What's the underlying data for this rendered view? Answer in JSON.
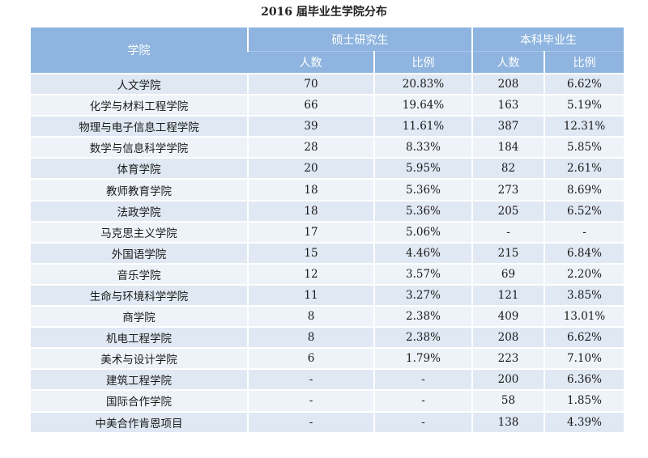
{
  "title": "2016 届毕业生学院分布",
  "table": {
    "header": {
      "college": "学院",
      "master_group": "硕士研究生",
      "bachelor_group": "本科毕业生",
      "count": "人数",
      "ratio": "比例"
    },
    "rows": [
      {
        "name": "人文学院",
        "m_count": "70",
        "m_ratio": "20.83%",
        "b_count": "208",
        "b_ratio": "6.62%"
      },
      {
        "name": "化学与材料工程学院",
        "m_count": "66",
        "m_ratio": "19.64%",
        "b_count": "163",
        "b_ratio": "5.19%"
      },
      {
        "name": "物理与电子信息工程学院",
        "m_count": "39",
        "m_ratio": "11.61%",
        "b_count": "387",
        "b_ratio": "12.31%"
      },
      {
        "name": "数学与信息科学学院",
        "m_count": "28",
        "m_ratio": "8.33%",
        "b_count": "184",
        "b_ratio": "5.85%"
      },
      {
        "name": "体育学院",
        "m_count": "20",
        "m_ratio": "5.95%",
        "b_count": "82",
        "b_ratio": "2.61%"
      },
      {
        "name": "教师教育学院",
        "m_count": "18",
        "m_ratio": "5.36%",
        "b_count": "273",
        "b_ratio": "8.69%"
      },
      {
        "name": "法政学院",
        "m_count": "18",
        "m_ratio": "5.36%",
        "b_count": "205",
        "b_ratio": "6.52%"
      },
      {
        "name": "马克思主义学院",
        "m_count": "17",
        "m_ratio": "5.06%",
        "b_count": "-",
        "b_ratio": "-"
      },
      {
        "name": "外国语学院",
        "m_count": "15",
        "m_ratio": "4.46%",
        "b_count": "215",
        "b_ratio": "6.84%"
      },
      {
        "name": "音乐学院",
        "m_count": "12",
        "m_ratio": "3.57%",
        "b_count": "69",
        "b_ratio": "2.20%"
      },
      {
        "name": "生命与环境科学学院",
        "m_count": "11",
        "m_ratio": "3.27%",
        "b_count": "121",
        "b_ratio": "3.85%"
      },
      {
        "name": "商学院",
        "m_count": "8",
        "m_ratio": "2.38%",
        "b_count": "409",
        "b_ratio": "13.01%"
      },
      {
        "name": "机电工程学院",
        "m_count": "8",
        "m_ratio": "2.38%",
        "b_count": "208",
        "b_ratio": "6.62%"
      },
      {
        "name": "美术与设计学院",
        "m_count": "6",
        "m_ratio": "1.79%",
        "b_count": "223",
        "b_ratio": "7.10%"
      },
      {
        "name": "建筑工程学院",
        "m_count": "-",
        "m_ratio": "-",
        "b_count": "200",
        "b_ratio": "6.36%"
      },
      {
        "name": "国际合作学院",
        "m_count": "-",
        "m_ratio": "-",
        "b_count": "58",
        "b_ratio": "1.85%"
      },
      {
        "name": "中美合作肯恩项目",
        "m_count": "-",
        "m_ratio": "-",
        "b_count": "138",
        "b_ratio": "4.39%"
      }
    ]
  }
}
